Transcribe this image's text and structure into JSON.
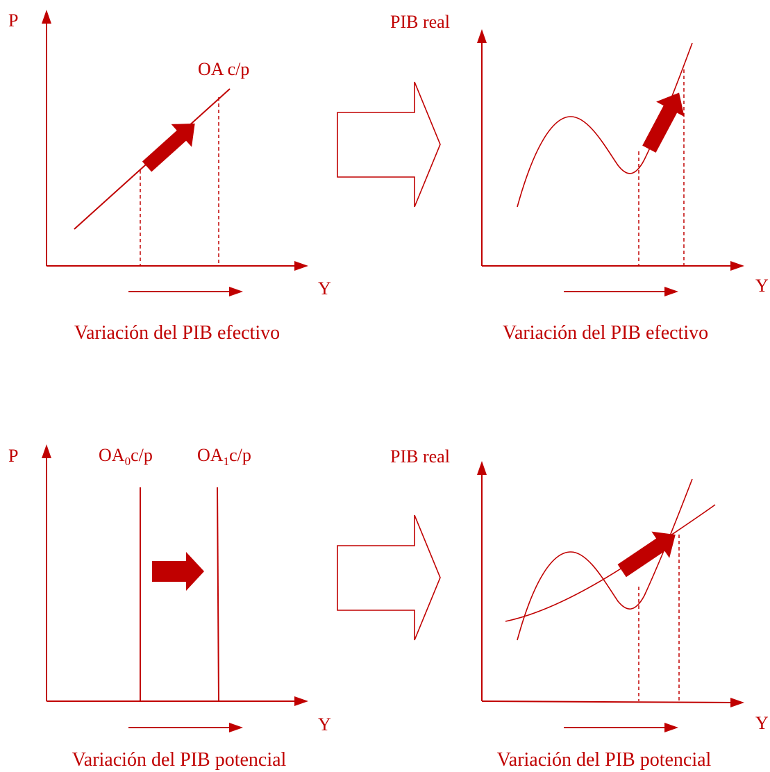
{
  "colors": {
    "accent": "#c00000",
    "background": "#ffffff"
  },
  "panels": {
    "top_left": {
      "y_axis_label": "P",
      "x_axis_label": "Y",
      "curve_label": "OA c/p",
      "caption": "Variación del PIB efectivo"
    },
    "top_right": {
      "y_axis_label": "PIB real",
      "x_axis_label": "Y",
      "caption": "Variación del PIB efectivo"
    },
    "bottom_left": {
      "y_axis_label": "P",
      "x_axis_label": "Y",
      "curve0_label_main": "OA",
      "curve0_label_sub": "0",
      "curve0_label_rest": "c/p",
      "curve1_label_main": "OA",
      "curve1_label_sub": "1",
      "curve1_label_rest": "c/p",
      "caption": "Variación del PIB potencial"
    },
    "bottom_right": {
      "y_axis_label": "PIB real",
      "x_axis_label": "Y",
      "caption": "Variación del PIB potencial"
    }
  }
}
